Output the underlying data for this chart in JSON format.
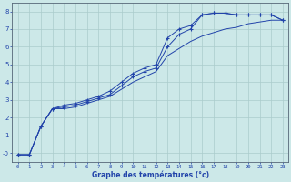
{
  "xlabel": "Graphe des températures (°c)",
  "bg_color": "#cce8e8",
  "grid_color": "#aacccc",
  "line_color": "#2244aa",
  "xlim": [
    -0.5,
    23.5
  ],
  "ylim": [
    -0.5,
    8.5
  ],
  "xticks": [
    0,
    1,
    2,
    3,
    4,
    5,
    6,
    7,
    8,
    9,
    10,
    11,
    12,
    13,
    14,
    15,
    16,
    17,
    18,
    19,
    20,
    21,
    22,
    23
  ],
  "yticks": [
    0,
    1,
    2,
    3,
    4,
    5,
    6,
    7,
    8
  ],
  "ytick_labels": [
    "-0",
    "1",
    "2",
    "3",
    "4",
    "5",
    "6",
    "7",
    "8"
  ],
  "x": [
    0,
    1,
    2,
    3,
    4,
    5,
    6,
    7,
    8,
    9,
    10,
    11,
    12,
    13,
    14,
    15,
    16,
    17,
    18,
    19,
    20,
    21,
    22,
    23
  ],
  "line1_marked": [
    -0.1,
    -0.1,
    1.5,
    2.5,
    2.7,
    2.8,
    3.0,
    3.2,
    3.5,
    4.0,
    4.5,
    4.8,
    5.0,
    6.5,
    7.0,
    7.2,
    7.8,
    7.9,
    7.9,
    7.8,
    7.8,
    7.8,
    7.8,
    7.5
  ],
  "line2_marked": [
    -0.1,
    -0.1,
    1.5,
    2.5,
    2.6,
    2.7,
    2.9,
    3.1,
    3.3,
    3.8,
    4.3,
    4.6,
    4.8,
    6.0,
    6.7,
    7.0,
    7.8,
    7.9,
    7.9,
    7.8,
    7.8,
    7.8,
    7.8,
    7.5
  ],
  "line3_smooth": [
    -0.1,
    -0.1,
    1.5,
    2.5,
    2.5,
    2.6,
    2.8,
    3.0,
    3.2,
    3.6,
    4.0,
    4.3,
    4.6,
    5.5,
    5.9,
    6.3,
    6.6,
    6.8,
    7.0,
    7.1,
    7.3,
    7.4,
    7.5,
    7.5
  ]
}
